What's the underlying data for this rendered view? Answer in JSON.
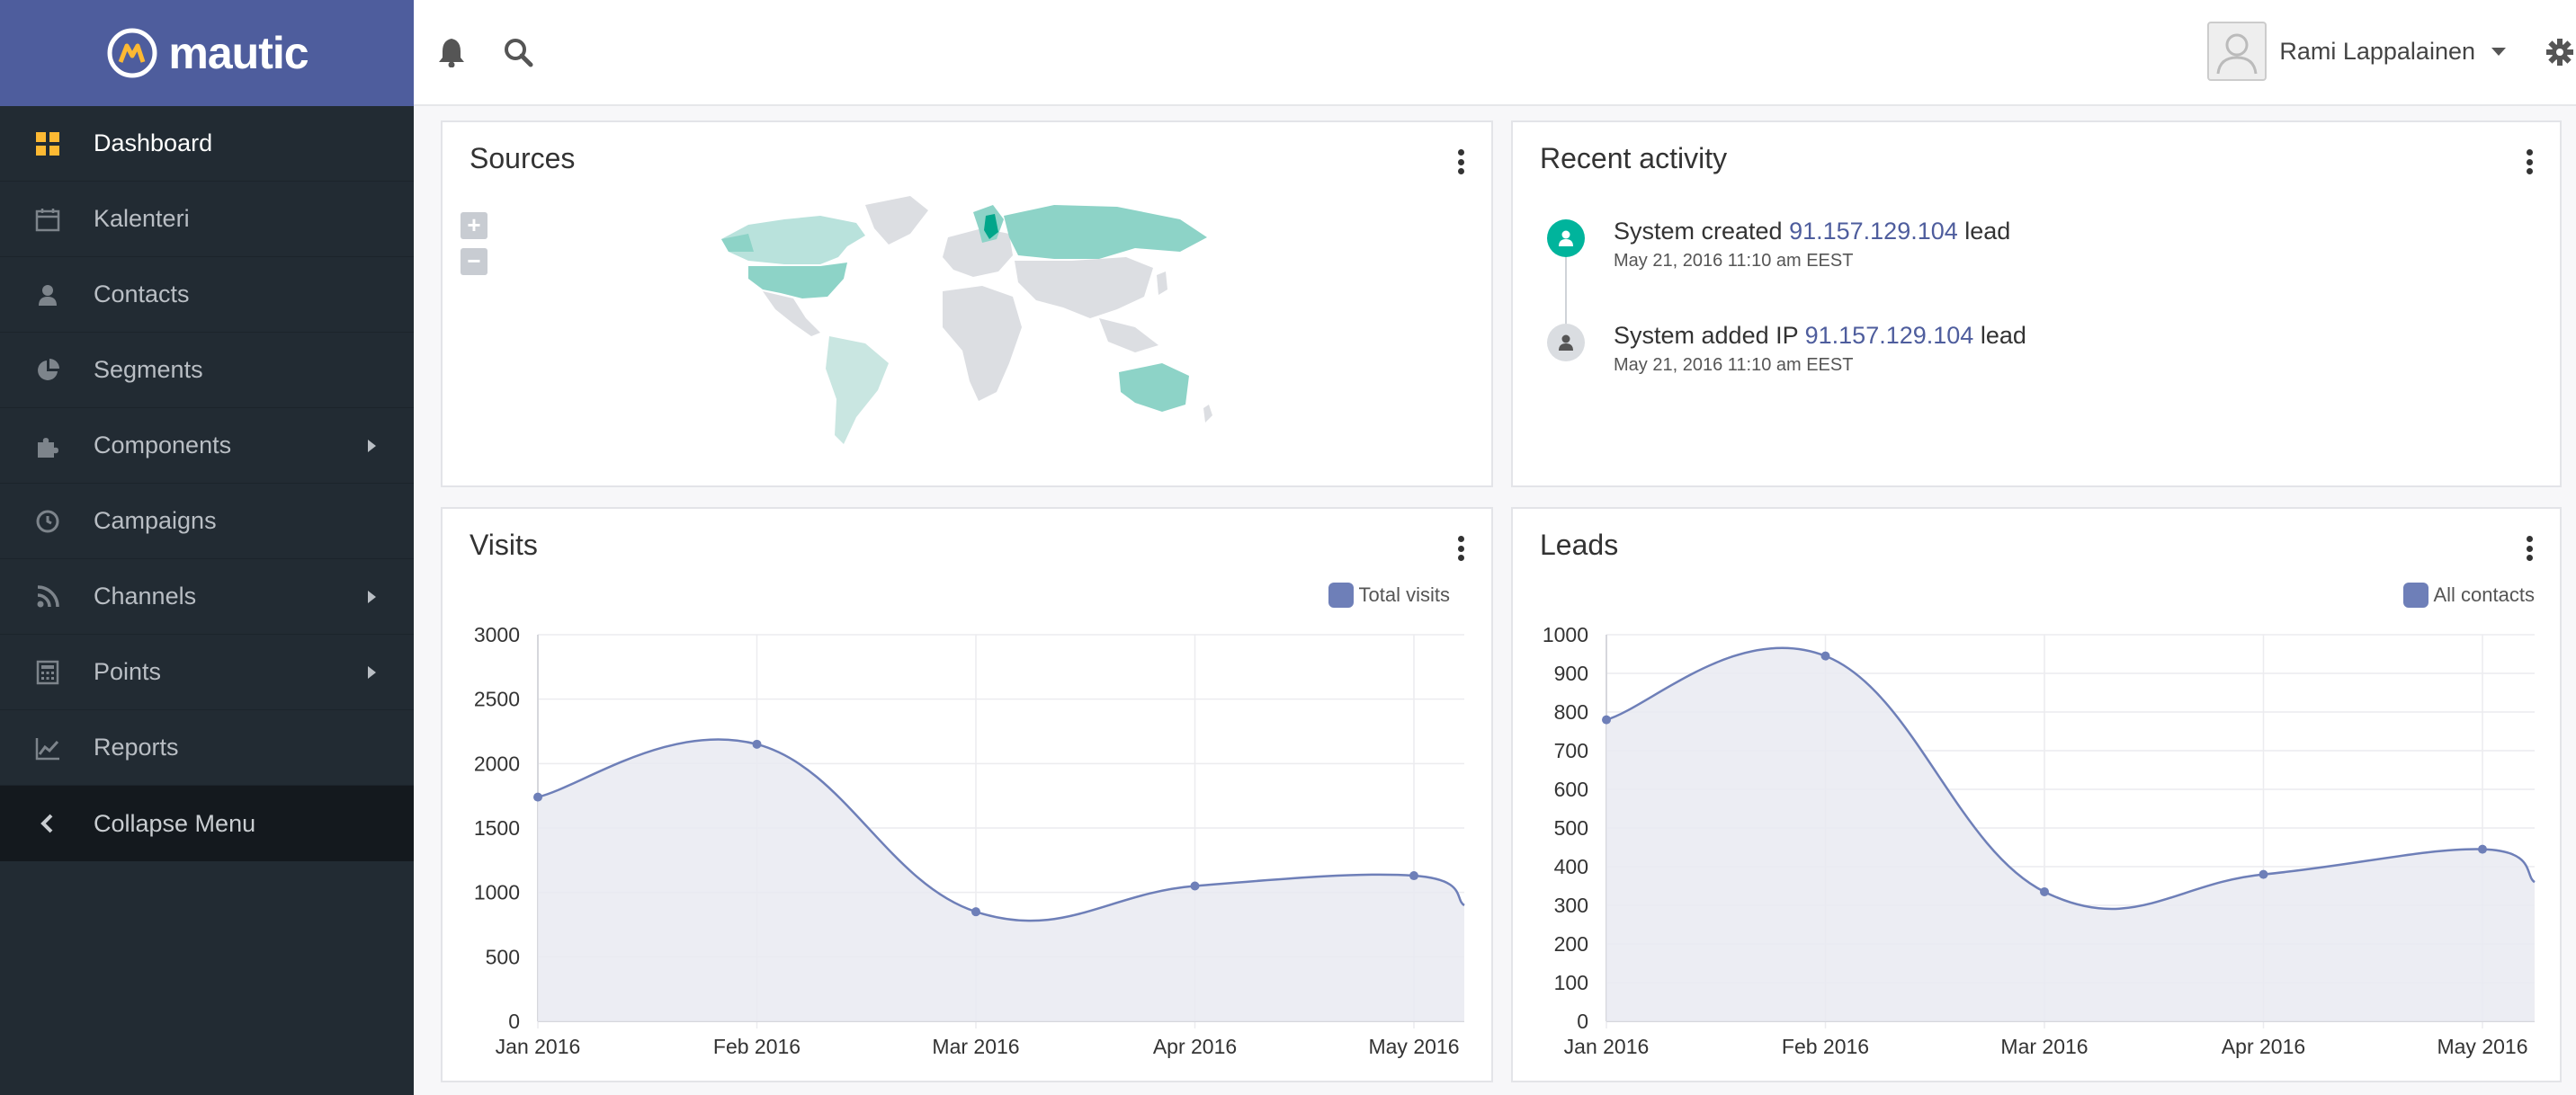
{
  "brand": {
    "name": "mautic"
  },
  "nav": {
    "items": [
      {
        "label": "Dashboard",
        "icon": "dashboard-icon",
        "active": true
      },
      {
        "label": "Kalenteri",
        "icon": "calendar-icon"
      },
      {
        "label": "Contacts",
        "icon": "user-icon"
      },
      {
        "label": "Segments",
        "icon": "pie-chart-icon"
      },
      {
        "label": "Components",
        "icon": "puzzle-icon",
        "submenu": true
      },
      {
        "label": "Campaigns",
        "icon": "clock-icon"
      },
      {
        "label": "Channels",
        "icon": "rss-icon",
        "submenu": true
      },
      {
        "label": "Points",
        "icon": "calculator-icon",
        "submenu": true
      },
      {
        "label": "Reports",
        "icon": "line-chart-icon"
      },
      {
        "label": "Collapse Menu",
        "icon": "chevron-left-icon",
        "collapse": true
      }
    ]
  },
  "topbar": {
    "user_name": "Rami Lappalainen",
    "icons": [
      "bell-icon",
      "search-icon",
      "gear-icon"
    ]
  },
  "sources": {
    "title": "Sources",
    "zoom_in": "+",
    "zoom_out": "−",
    "highlight_color": "#8dd3c7",
    "selected_color": "#00a68a",
    "neutral_color": "#dcdee2"
  },
  "activity": {
    "title": "Recent activity",
    "items": [
      {
        "prefix": "System created ",
        "link": "91.157.129.104",
        "suffix": " lead",
        "time": "May 21, 2016 11:10 am EEST",
        "icon": "user-icon",
        "color": "#00b49c"
      },
      {
        "prefix": "System added IP ",
        "link": "91.157.129.104",
        "suffix": " lead",
        "time": "May 21, 2016 11:10 am EEST",
        "icon": "user-icon",
        "color": "#dadde1"
      }
    ]
  },
  "visits": {
    "title": "Visits",
    "legend": "Total visits"
  },
  "leads": {
    "title": "Leads",
    "legend": "All contacts"
  },
  "colors": {
    "accent": "#4e5d9d",
    "sidebar": "#222b33",
    "series": "#6e7fb8",
    "fill": "#e9eaf1"
  },
  "chart_data": [
    {
      "type": "line",
      "title": "Visits",
      "x": [
        "Jan 2016",
        "Feb 2016",
        "Mar 2016",
        "Apr 2016",
        "May 2016"
      ],
      "series": [
        {
          "name": "Total visits",
          "values": [
            1740,
            2150,
            850,
            1050,
            1130
          ]
        }
      ],
      "ylim": [
        0,
        3000
      ],
      "yticks": [
        0,
        500,
        1000,
        1500,
        2000,
        2500,
        3000
      ],
      "tail_value": 900,
      "legend": "top-right",
      "grid": true
    },
    {
      "type": "line",
      "title": "Leads",
      "x": [
        "Jan 2016",
        "Feb 2016",
        "Mar 2016",
        "Apr 2016",
        "May 2016"
      ],
      "series": [
        {
          "name": "All contacts",
          "values": [
            780,
            945,
            335,
            380,
            445
          ]
        }
      ],
      "ylim": [
        0,
        1000
      ],
      "yticks": [
        0,
        100,
        200,
        300,
        400,
        500,
        600,
        700,
        800,
        900,
        1000
      ],
      "tail_value": 360,
      "legend": "top-right",
      "grid": true
    }
  ]
}
